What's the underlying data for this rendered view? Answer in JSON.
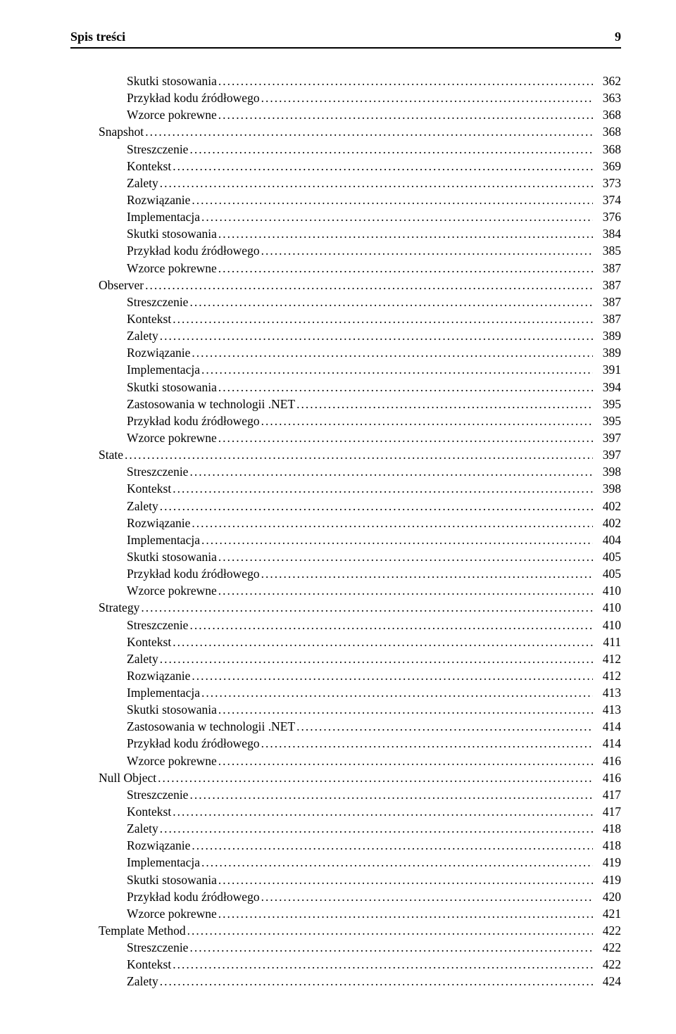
{
  "header": {
    "title": "Spis treści",
    "page_number": "9"
  },
  "toc": [
    {
      "level": 2,
      "label": "Skutki stosowania",
      "page": "362"
    },
    {
      "level": 2,
      "label": "Przykład kodu źródłowego",
      "page": "363"
    },
    {
      "level": 2,
      "label": "Wzorce pokrewne",
      "page": "368"
    },
    {
      "level": 1,
      "label": "Snapshot",
      "page": "368"
    },
    {
      "level": 2,
      "label": "Streszczenie",
      "page": "368"
    },
    {
      "level": 2,
      "label": "Kontekst",
      "page": "369"
    },
    {
      "level": 2,
      "label": "Zalety",
      "page": "373"
    },
    {
      "level": 2,
      "label": "Rozwiązanie",
      "page": "374"
    },
    {
      "level": 2,
      "label": "Implementacja",
      "page": "376"
    },
    {
      "level": 2,
      "label": "Skutki stosowania",
      "page": "384"
    },
    {
      "level": 2,
      "label": "Przykład kodu źródłowego",
      "page": "385"
    },
    {
      "level": 2,
      "label": "Wzorce pokrewne",
      "page": "387"
    },
    {
      "level": 1,
      "label": "Observer",
      "page": "387"
    },
    {
      "level": 2,
      "label": "Streszczenie",
      "page": "387"
    },
    {
      "level": 2,
      "label": "Kontekst",
      "page": "387"
    },
    {
      "level": 2,
      "label": "Zalety",
      "page": "389"
    },
    {
      "level": 2,
      "label": "Rozwiązanie",
      "page": "389"
    },
    {
      "level": 2,
      "label": "Implementacja",
      "page": "391"
    },
    {
      "level": 2,
      "label": "Skutki stosowania",
      "page": "394"
    },
    {
      "level": 2,
      "label": "Zastosowania w technologii .NET",
      "page": "395"
    },
    {
      "level": 2,
      "label": "Przykład kodu źródłowego",
      "page": "395"
    },
    {
      "level": 2,
      "label": "Wzorce pokrewne",
      "page": "397"
    },
    {
      "level": 1,
      "label": "State",
      "page": "397"
    },
    {
      "level": 2,
      "label": "Streszczenie",
      "page": "398"
    },
    {
      "level": 2,
      "label": "Kontekst",
      "page": "398"
    },
    {
      "level": 2,
      "label": "Zalety",
      "page": "402"
    },
    {
      "level": 2,
      "label": "Rozwiązanie",
      "page": "402"
    },
    {
      "level": 2,
      "label": "Implementacja",
      "page": "404"
    },
    {
      "level": 2,
      "label": "Skutki stosowania",
      "page": "405"
    },
    {
      "level": 2,
      "label": "Przykład kodu źródłowego",
      "page": "405"
    },
    {
      "level": 2,
      "label": "Wzorce pokrewne",
      "page": "410"
    },
    {
      "level": 1,
      "label": "Strategy",
      "page": "410"
    },
    {
      "level": 2,
      "label": "Streszczenie",
      "page": "410"
    },
    {
      "level": 2,
      "label": "Kontekst",
      "page": "411"
    },
    {
      "level": 2,
      "label": "Zalety",
      "page": "412"
    },
    {
      "level": 2,
      "label": "Rozwiązanie",
      "page": "412"
    },
    {
      "level": 2,
      "label": "Implementacja",
      "page": "413"
    },
    {
      "level": 2,
      "label": "Skutki stosowania",
      "page": "413"
    },
    {
      "level": 2,
      "label": "Zastosowania w technologii .NET",
      "page": "414"
    },
    {
      "level": 2,
      "label": "Przykład kodu źródłowego",
      "page": "414"
    },
    {
      "level": 2,
      "label": "Wzorce pokrewne",
      "page": "416"
    },
    {
      "level": 1,
      "label": "Null Object",
      "page": "416"
    },
    {
      "level": 2,
      "label": "Streszczenie",
      "page": "417"
    },
    {
      "level": 2,
      "label": "Kontekst",
      "page": "417"
    },
    {
      "level": 2,
      "label": "Zalety",
      "page": "418"
    },
    {
      "level": 2,
      "label": "Rozwiązanie",
      "page": "418"
    },
    {
      "level": 2,
      "label": "Implementacja",
      "page": "419"
    },
    {
      "level": 2,
      "label": "Skutki stosowania",
      "page": "419"
    },
    {
      "level": 2,
      "label": "Przykład kodu źródłowego",
      "page": "420"
    },
    {
      "level": 2,
      "label": "Wzorce pokrewne",
      "page": "421"
    },
    {
      "level": 1,
      "label": "Template Method",
      "page": "422"
    },
    {
      "level": 2,
      "label": "Streszczenie",
      "page": "422"
    },
    {
      "level": 2,
      "label": "Kontekst",
      "page": "422"
    },
    {
      "level": 2,
      "label": "Zalety",
      "page": "424"
    }
  ]
}
